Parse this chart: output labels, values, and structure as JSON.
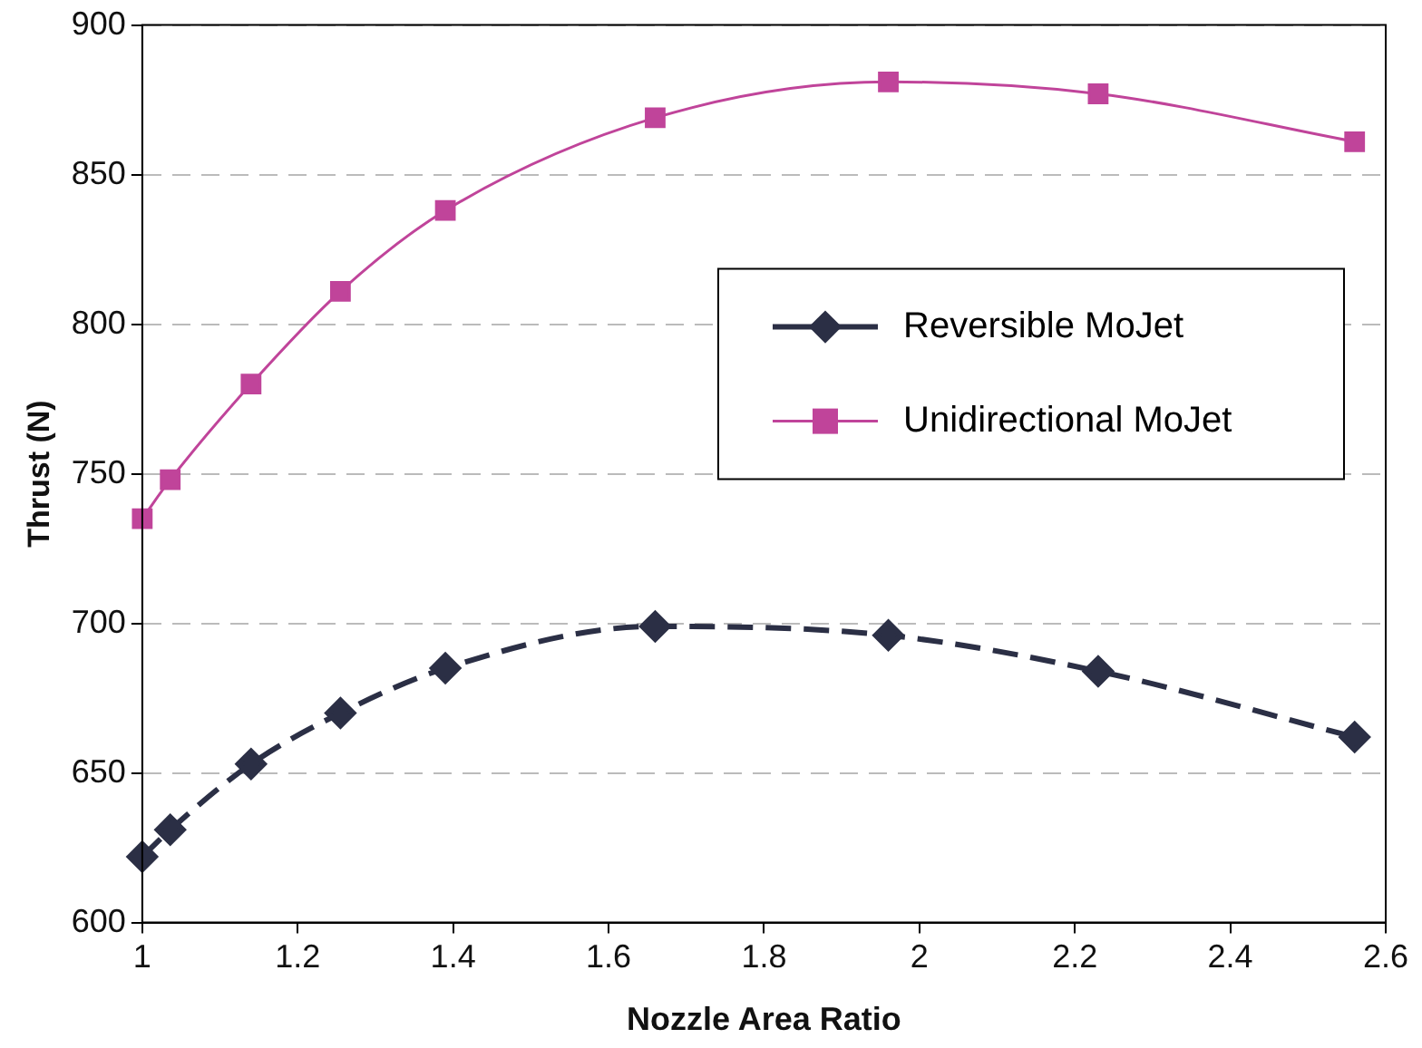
{
  "chart_data": {
    "type": "line",
    "xlabel": "Nozzle Area Ratio",
    "ylabel": "Thrust (N)",
    "xlim": [
      1,
      2.6
    ],
    "xticks": [
      1,
      1.2,
      1.4,
      1.6,
      1.8,
      2,
      2.2,
      2.4,
      2.6
    ],
    "ylim": [
      600,
      900
    ],
    "yticks": [
      600,
      650,
      700,
      750,
      800,
      850,
      900
    ],
    "grid": "y",
    "legend": "right",
    "series": [
      {
        "name": "Reversible MoJet",
        "color": "#2b2f45",
        "marker": "diamond",
        "line_style": "dashed",
        "x": [
          1,
          1.036,
          1.14,
          1.255,
          1.39,
          1.66,
          1.96,
          2.23,
          2.56
        ],
        "values": [
          622,
          631,
          653,
          670,
          685,
          699,
          696,
          684,
          662
        ]
      },
      {
        "name": "Unidirectional MoJet",
        "color": "#c0449a",
        "marker": "square",
        "line_style": "solid",
        "x": [
          1,
          1.036,
          1.14,
          1.255,
          1.39,
          1.66,
          1.96,
          2.23,
          2.56
        ],
        "values": [
          735,
          748,
          780,
          811,
          838,
          869,
          881,
          877,
          861
        ]
      }
    ]
  }
}
